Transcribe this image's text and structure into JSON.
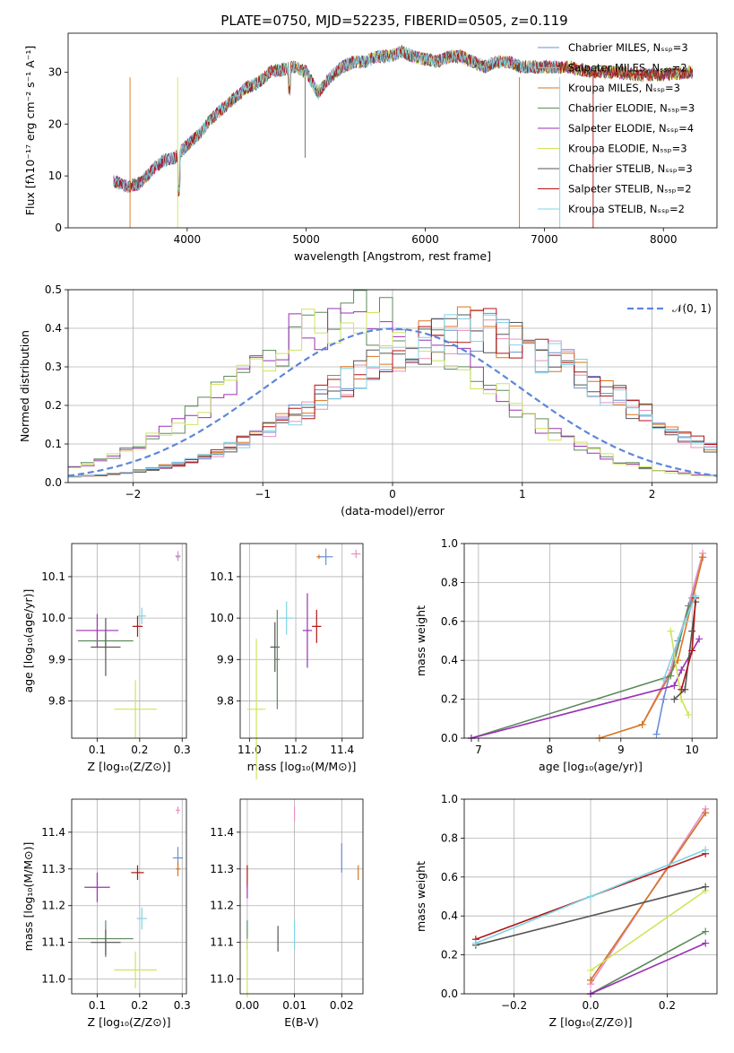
{
  "figure_title": "PLATE=0750, MJD=52235, FIBERID=0505, z=0.119",
  "colors": [
    "#6a8fd6",
    "#e98fc1",
    "#d87520",
    "#5d8a5d",
    "#9b30b5",
    "#cfe45c",
    "#555555",
    "#b01515",
    "#7fd4e3"
  ],
  "chart_data": [
    {
      "id": "spectrum",
      "type": "line",
      "title": "PLATE=0750, MJD=52235, FIBERID=0505, z=0.119",
      "xlabel": "wavelength [Angstrom, rest frame]",
      "ylabel": "Flux [fλ10⁻¹⁷ erg cm⁻² s⁻¹ A⁻¹]",
      "xlim": [
        3000,
        8450
      ],
      "ylim": [
        0,
        37.5
      ],
      "xticks": [
        "4000",
        "5000",
        "6000",
        "7000",
        "8000"
      ],
      "yticks": [
        "0",
        "10",
        "20",
        "30"
      ],
      "legend_position": "right",
      "legend": [
        "Chabrier MILES, Nₛₛₚ=3",
        "Salpeter MILES, Nₛₛₚ=2",
        "Kroupa MILES, Nₛₛₚ=3",
        "Chabrier ELODIE, Nₛₛₚ=3",
        "Salpeter ELODIE, Nₛₛₚ=4",
        "Kroupa ELODIE, Nₛₛₚ=3",
        "Chabrier STELIB, Nₛₛₚ=3",
        "Salpeter STELIB, Nₛₛₚ=2",
        "Kroupa STELIB, Nₛₛₚ=2"
      ],
      "x": [
        3380,
        3500,
        3600,
        3700,
        3800,
        3900,
        4000,
        4100,
        4200,
        4300,
        4400,
        4500,
        4600,
        4700,
        4800,
        4900,
        5000,
        5100,
        5200,
        5300,
        5400,
        5500,
        5600,
        5700,
        5800,
        5900,
        6000,
        6100,
        6200,
        6300,
        6400,
        6500,
        6600,
        6700,
        6800,
        6900,
        7000,
        7100,
        7200,
        7400,
        7600,
        7800,
        8000,
        8200
      ],
      "y": [
        9,
        8,
        8.5,
        11,
        13,
        13.5,
        16,
        18,
        21,
        23,
        25,
        27,
        28,
        30,
        30.5,
        31,
        30,
        26,
        29,
        31,
        32,
        32,
        33,
        33,
        34,
        33,
        32.5,
        32,
        33,
        33,
        32,
        31,
        32,
        32,
        31,
        31,
        31,
        31,
        31,
        30,
        30,
        29.5,
        29.5,
        30
      ]
    },
    {
      "id": "residuals",
      "type": "histogram",
      "xlabel": "(data-model)/error",
      "ylabel": "Normed distribution",
      "xlim": [
        -2.5,
        2.5
      ],
      "ylim": [
        0,
        0.5
      ],
      "xticks": [
        "−2",
        "−1",
        "0",
        "1",
        "2"
      ],
      "yticks": [
        "0.0",
        "0.1",
        "0.2",
        "0.3",
        "0.4",
        "0.5"
      ],
      "grid": true,
      "legend_position": "top-right",
      "legend": [
        "𝒩(0, 1)"
      ],
      "normal_curve": {
        "mean": 0,
        "sigma": 1
      },
      "group_a_peak": -0.25,
      "group_a_width": 0.95,
      "group_b_peak": 0.6,
      "group_b_width": 1.05
    },
    {
      "id": "age-vs-Z",
      "type": "scatter",
      "xlabel": "Z [log₁₀(Z/Z⊙)]",
      "ylabel": "age  [log₁₀(age/yr)]",
      "xlim": [
        0.04,
        0.31
      ],
      "ylim": [
        9.71,
        10.18
      ],
      "xticks": [
        "0.1",
        "0.2",
        "0.3"
      ],
      "xtick_values": [
        0.1,
        0.2,
        0.3
      ],
      "yticks": [
        "9.8",
        "9.9",
        "10.0",
        "10.1"
      ],
      "ytick_values": [
        9.8,
        9.9,
        10.0,
        10.1
      ],
      "grid": true,
      "points": [
        {
          "x": 0.29,
          "y": 10.148,
          "xerr": 0.005,
          "yerr": 0.01,
          "c": 0
        },
        {
          "x": 0.29,
          "y": 10.15,
          "xerr": 0.006,
          "yerr": 0.012,
          "c": 1
        },
        {
          "x": 0.205,
          "y": 10.005,
          "xerr": 0.01,
          "yerr": 0.02,
          "c": 8
        },
        {
          "x": 0.195,
          "y": 9.98,
          "xerr": 0.012,
          "yerr": 0.025,
          "c": 7
        },
        {
          "x": 0.1,
          "y": 9.97,
          "xerr": 0.05,
          "yerr": 0.04,
          "c": 4
        },
        {
          "x": 0.12,
          "y": 9.945,
          "xerr": 0.065,
          "yerr": 0.02,
          "c": 3
        },
        {
          "x": 0.12,
          "y": 9.93,
          "xerr": 0.035,
          "yerr": 0.07,
          "c": 6
        },
        {
          "x": 0.19,
          "y": 9.78,
          "xerr": 0.05,
          "yerr": 0.07,
          "c": 5
        }
      ]
    },
    {
      "id": "age-vs-mass",
      "type": "scatter",
      "xlabel": "mass [log₁₀(M/M⊙)]",
      "ylabel": "",
      "xlim": [
        10.96,
        11.49
      ],
      "ylim": [
        9.71,
        10.18
      ],
      "xticks": [
        "11.0",
        "11.2",
        "11.4"
      ],
      "xtick_values": [
        11.0,
        11.2,
        11.4
      ],
      "yticks": [
        "9.8",
        "9.9",
        "10.0",
        "10.1"
      ],
      "ytick_values": [
        9.8,
        9.9,
        10.0,
        10.1
      ],
      "grid": true,
      "points": [
        {
          "x": 11.3,
          "y": 10.148,
          "xerr": 0.01,
          "yerr": 0.005,
          "c": 2
        },
        {
          "x": 11.33,
          "y": 10.148,
          "xerr": 0.03,
          "yerr": 0.02,
          "c": 0
        },
        {
          "x": 11.46,
          "y": 10.155,
          "xerr": 0.02,
          "yerr": 0.01,
          "c": 1
        },
        {
          "x": 11.16,
          "y": 10.0,
          "xerr": 0.03,
          "yerr": 0.04,
          "c": 8
        },
        {
          "x": 11.29,
          "y": 9.98,
          "xerr": 0.02,
          "yerr": 0.04,
          "c": 7
        },
        {
          "x": 11.25,
          "y": 9.97,
          "xerr": 0.02,
          "yerr": 0.09,
          "c": 4
        },
        {
          "x": 11.11,
          "y": 9.93,
          "xerr": 0.02,
          "yerr": 0.06,
          "c": 6
        },
        {
          "x": 11.12,
          "y": 9.9,
          "xerr": 0.01,
          "yerr": 0.12,
          "c": 3
        },
        {
          "x": 11.03,
          "y": 9.78,
          "xerr": 0.04,
          "yerr": 0.17,
          "c": 5
        }
      ]
    },
    {
      "id": "mass-weight-vs-age",
      "type": "line",
      "xlabel": "age  [log₁₀(age/yr)]",
      "ylabel": "mass weight",
      "xlim": [
        6.8,
        10.35
      ],
      "ylim": [
        0,
        1.0
      ],
      "xticks": [
        "7",
        "8",
        "9",
        "10"
      ],
      "xtick_values": [
        7,
        8,
        9,
        10
      ],
      "yticks": [
        "0.0",
        "0.2",
        "0.4",
        "0.6",
        "0.8",
        "1.0"
      ],
      "ytick_values": [
        0,
        0.2,
        0.4,
        0.6,
        0.8,
        1.0
      ],
      "grid": true,
      "series": [
        {
          "c": 0,
          "x": [
            9.5,
            9.6,
            9.8,
            10.0,
            10.15
          ],
          "y": [
            0.02,
            0.2,
            0.5,
            0.72,
            0.93
          ]
        },
        {
          "c": 1,
          "x": [
            9.3,
            9.7,
            10.15
          ],
          "y": [
            0.07,
            0.35,
            0.95
          ]
        },
        {
          "c": 2,
          "x": [
            8.7,
            9.3,
            9.8,
            10.15
          ],
          "y": [
            0.0,
            0.07,
            0.4,
            0.93
          ]
        },
        {
          "c": 3,
          "x": [
            6.9,
            9.7,
            9.95
          ],
          "y": [
            0.0,
            0.32,
            0.68
          ]
        },
        {
          "c": 4,
          "x": [
            6.9,
            9.75,
            9.85,
            10.1
          ],
          "y": [
            0.0,
            0.27,
            0.35,
            0.51
          ]
        },
        {
          "c": 5,
          "x": [
            9.7,
            9.85,
            9.95
          ],
          "y": [
            0.55,
            0.2,
            0.12
          ]
        },
        {
          "c": 6,
          "x": [
            9.75,
            9.9,
            10.0,
            10.05
          ],
          "y": [
            0.2,
            0.25,
            0.55,
            0.7
          ]
        },
        {
          "c": 7,
          "x": [
            9.85,
            10.0,
            10.05
          ],
          "y": [
            0.25,
            0.45,
            0.72
          ]
        },
        {
          "c": 8,
          "x": [
            9.6,
            9.9,
            10.05
          ],
          "y": [
            0.3,
            0.6,
            0.73
          ]
        }
      ]
    },
    {
      "id": "mass-vs-Z",
      "type": "scatter",
      "xlabel": "Z [log₁₀(Z/Z⊙)]",
      "ylabel": "mass [log₁₀(M/M⊙)]",
      "xlim": [
        0.04,
        0.31
      ],
      "ylim": [
        10.96,
        11.49
      ],
      "xticks": [
        "0.1",
        "0.2",
        "0.3"
      ],
      "xtick_values": [
        0.1,
        0.2,
        0.3
      ],
      "yticks": [
        "11.0",
        "11.1",
        "11.2",
        "11.3",
        "11.4"
      ],
      "ytick_values": [
        11.0,
        11.1,
        11.2,
        11.3,
        11.4
      ],
      "grid": true,
      "points": [
        {
          "x": 0.29,
          "y": 11.46,
          "xerr": 0.005,
          "yerr": 0.01,
          "c": 1
        },
        {
          "x": 0.29,
          "y": 11.33,
          "xerr": 0.012,
          "yerr": 0.03,
          "c": 0
        },
        {
          "x": 0.29,
          "y": 11.3,
          "xerr": 0.005,
          "yerr": 0.02,
          "c": 2
        },
        {
          "x": 0.195,
          "y": 11.29,
          "xerr": 0.015,
          "yerr": 0.02,
          "c": 7
        },
        {
          "x": 0.1,
          "y": 11.25,
          "xerr": 0.03,
          "yerr": 0.04,
          "c": 4
        },
        {
          "x": 0.205,
          "y": 11.165,
          "xerr": 0.012,
          "yerr": 0.03,
          "c": 8
        },
        {
          "x": 0.12,
          "y": 11.11,
          "xerr": 0.065,
          "yerr": 0.05,
          "c": 3
        },
        {
          "x": 0.12,
          "y": 11.1,
          "xerr": 0.035,
          "yerr": 0.035,
          "c": 6
        },
        {
          "x": 0.19,
          "y": 11.025,
          "xerr": 0.05,
          "yerr": 0.05,
          "c": 5
        }
      ]
    },
    {
      "id": "mass-vs-ebv",
      "type": "scatter",
      "xlabel": "E(B-V)",
      "ylabel": "",
      "xlim": [
        -0.0015,
        0.0245
      ],
      "ylim": [
        10.96,
        11.49
      ],
      "xticks": [
        "0.00",
        "0.01",
        "0.02"
      ],
      "xtick_values": [
        0,
        0.01,
        0.02
      ],
      "yticks": [
        "11.0",
        "11.1",
        "11.2",
        "11.3",
        "11.4"
      ],
      "ytick_values": [
        11.0,
        11.1,
        11.2,
        11.3,
        11.4
      ],
      "grid": true,
      "points": [
        {
          "x": 0.0,
          "y": 11.28,
          "xerr": 0.0,
          "yerr": 0.03,
          "c": 7
        },
        {
          "x": 0.0,
          "y": 11.24,
          "xerr": 0.0,
          "yerr": 0.02,
          "c": 4
        },
        {
          "x": 0.0,
          "y": 11.12,
          "xerr": 0.0,
          "yerr": 0.04,
          "c": 3
        },
        {
          "x": 0.0,
          "y": 11.03,
          "xerr": 0.0,
          "yerr": 0.08,
          "c": 5
        },
        {
          "x": 0.0065,
          "y": 11.11,
          "xerr": 0.0,
          "yerr": 0.035,
          "c": 6
        },
        {
          "x": 0.01,
          "y": 11.45,
          "xerr": 0.0,
          "yerr": 0.02,
          "c": 1
        },
        {
          "x": 0.01,
          "y": 11.12,
          "xerr": 0.0,
          "yerr": 0.04,
          "c": 8
        },
        {
          "x": 0.02,
          "y": 11.33,
          "xerr": 0.0,
          "yerr": 0.04,
          "c": 0
        },
        {
          "x": 0.0235,
          "y": 11.29,
          "xerr": 0.0,
          "yerr": 0.02,
          "c": 2
        }
      ]
    },
    {
      "id": "mass-weight-vs-Z",
      "type": "line",
      "xlabel": "Z [log₁₀(Z/Z⊙)]",
      "ylabel": "mass weight",
      "xlim": [
        -0.33,
        0.33
      ],
      "ylim": [
        0,
        1.0
      ],
      "xticks": [
        "−0.2",
        "0.0",
        "0.2"
      ],
      "xtick_values": [
        -0.2,
        0,
        0.2
      ],
      "yticks": [
        "0.0",
        "0.2",
        "0.4",
        "0.6",
        "0.8",
        "1.0"
      ],
      "ytick_values": [
        0,
        0.2,
        0.4,
        0.6,
        0.8,
        1.0
      ],
      "grid": true,
      "series": [
        {
          "c": 0,
          "x": [
            0.0,
            0.3
          ],
          "y": [
            0.07,
            0.93
          ]
        },
        {
          "c": 1,
          "x": [
            0.0,
            0.3
          ],
          "y": [
            0.05,
            0.95
          ]
        },
        {
          "c": 2,
          "x": [
            0.0,
            0.3
          ],
          "y": [
            0.07,
            0.93
          ]
        },
        {
          "c": 3,
          "x": [
            0.0,
            0.3
          ],
          "y": [
            0.0,
            0.32
          ]
        },
        {
          "c": 4,
          "x": [
            0.0,
            0.3
          ],
          "y": [
            0.0,
            0.26
          ]
        },
        {
          "c": 5,
          "x": [
            0.0,
            0.3
          ],
          "y": [
            0.12,
            0.53
          ]
        },
        {
          "c": 6,
          "x": [
            -0.3,
            0.3
          ],
          "y": [
            0.25,
            0.55
          ]
        },
        {
          "c": 7,
          "x": [
            -0.3,
            0.3
          ],
          "y": [
            0.28,
            0.72
          ]
        },
        {
          "c": 8,
          "x": [
            -0.3,
            0.0,
            0.3
          ],
          "y": [
            0.26,
            0.5,
            0.74
          ]
        }
      ]
    }
  ]
}
